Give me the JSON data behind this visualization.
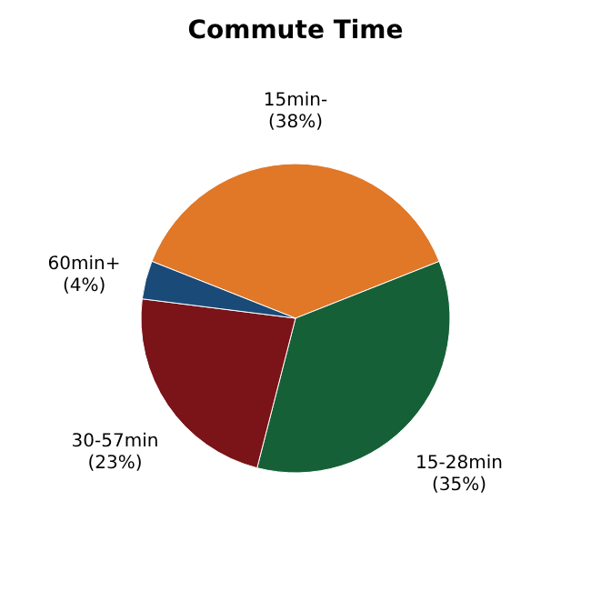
{
  "chart_data": {
    "type": "pie",
    "title": "Commute Time",
    "categories": [
      "15min-",
      "15-28min",
      "30-57min",
      "60min+"
    ],
    "values": [
      38,
      35,
      23,
      4
    ],
    "value_labels": [
      "(38%)",
      "(35%)",
      "(23%)",
      "(4%)"
    ],
    "colors": [
      "#e07828",
      "#166038",
      "#7a1418",
      "#1a4a78"
    ]
  }
}
